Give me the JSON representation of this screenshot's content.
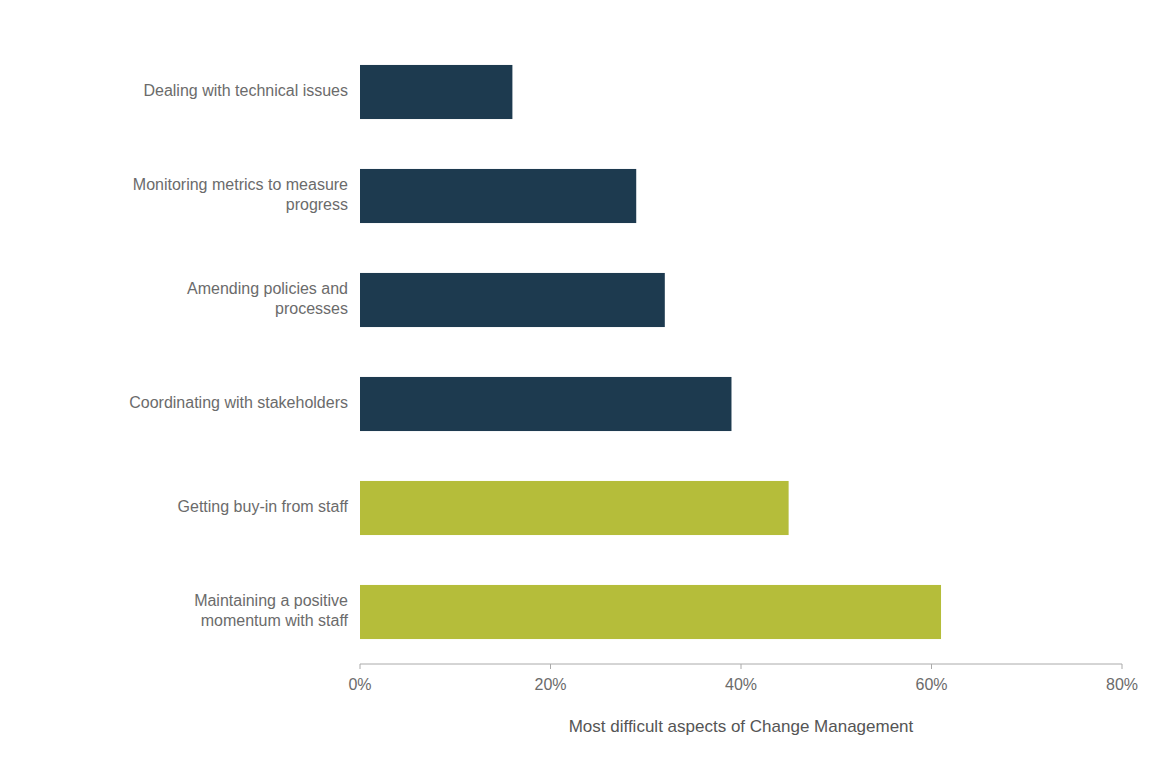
{
  "chart_data": {
    "type": "bar",
    "orientation": "horizontal",
    "categories": [
      "Maintaining a positive\nmomentum with staff",
      "Getting buy-in from staff",
      "Coordinating with stakeholders",
      "Amending policies and\nprocesses",
      "Monitoring metrics to measure\nprogress",
      "Dealing with technical issues"
    ],
    "values": [
      0.61,
      0.45,
      0.39,
      0.32,
      0.29,
      0.16
    ],
    "colors": [
      "#b5bd3a",
      "#b5bd3a",
      "#1d3a4f",
      "#1d3a4f",
      "#1d3a4f",
      "#1d3a4f"
    ],
    "xlabel": "Most difficult aspects of Change Management",
    "xlim": [
      0,
      0.8
    ],
    "xticks": [
      {
        "value": 0.0,
        "label": "0%"
      },
      {
        "value": 0.2,
        "label": "20%"
      },
      {
        "value": 0.4,
        "label": "40%"
      },
      {
        "value": 0.6,
        "label": "60%"
      },
      {
        "value": 0.8,
        "label": "80%"
      }
    ],
    "grid": false
  }
}
